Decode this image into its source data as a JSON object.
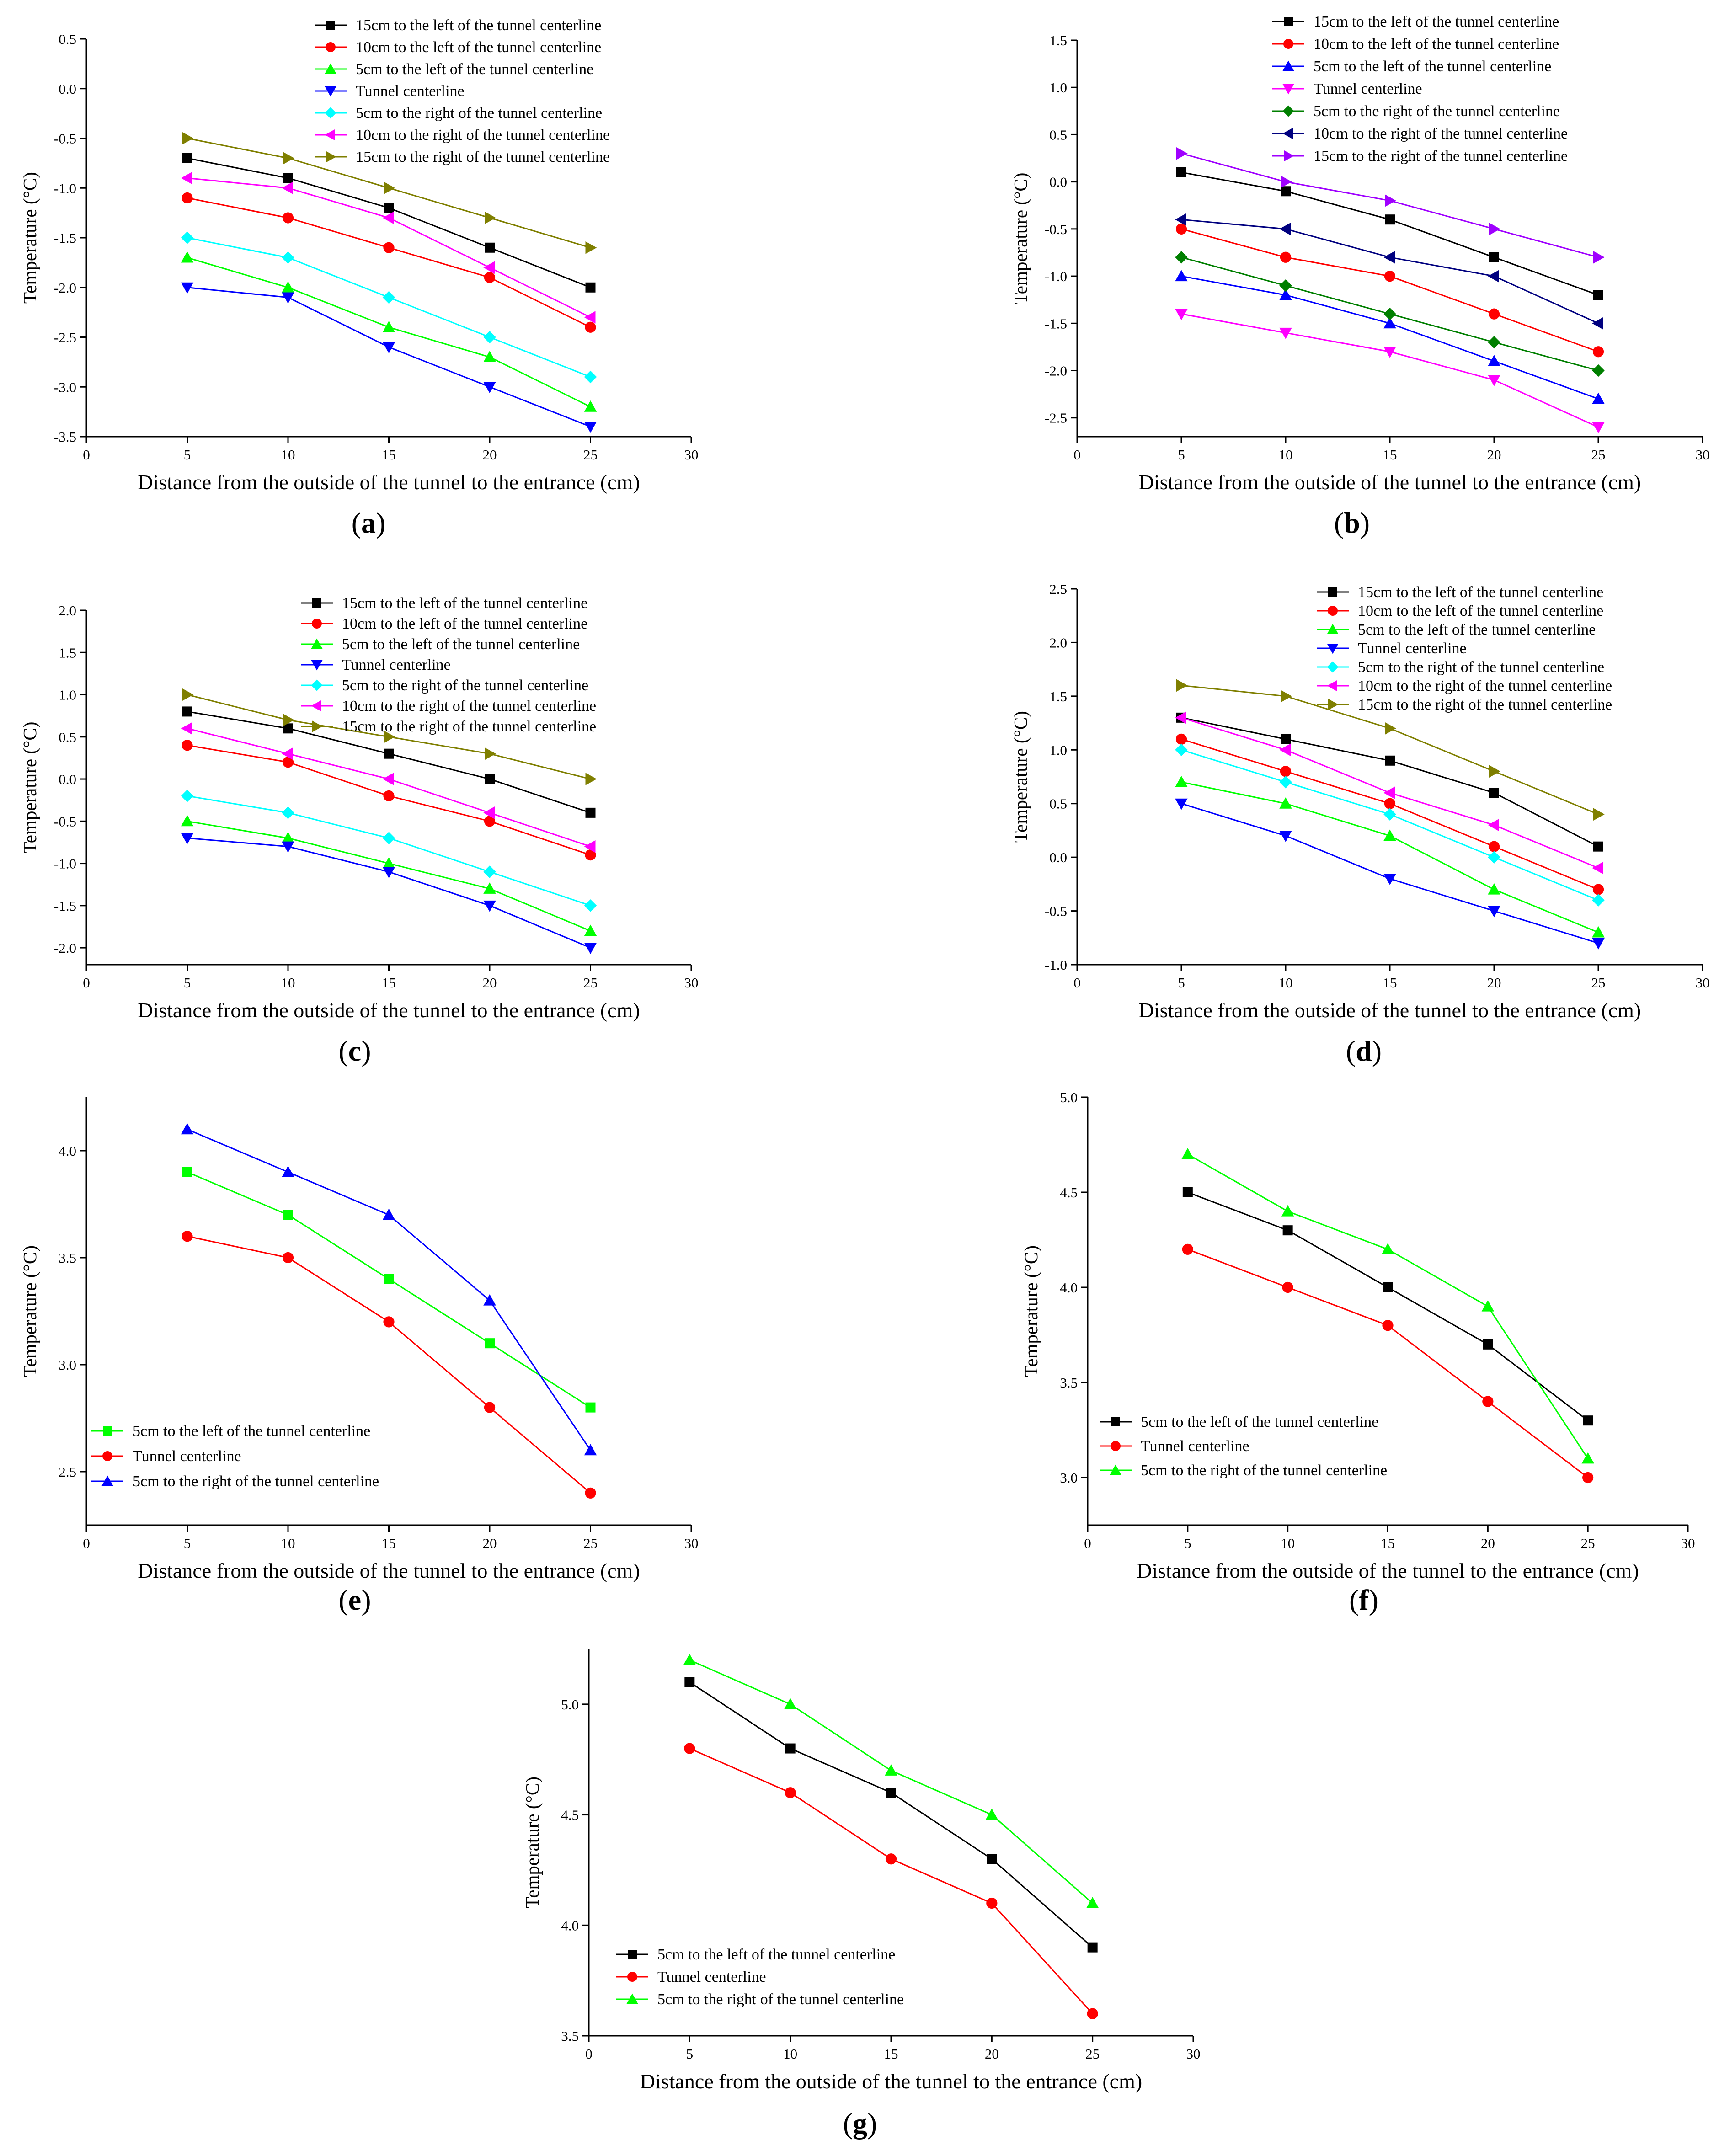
{
  "figure": {
    "panel_labels": [
      "(a)",
      "(b)",
      "(c)",
      "(d)",
      "(e)",
      "(f)",
      "(g)"
    ],
    "panel_letters": [
      "a",
      "b",
      "c",
      "d",
      "e",
      "f",
      "g"
    ]
  },
  "colors": {
    "black": "#000000",
    "red": "#ff0000",
    "green": "#00ff00",
    "darkgreen": "#007f00",
    "blue": "#0000ff",
    "navy": "#00007f",
    "cyan": "#00ffff",
    "magenta": "#ff00ff",
    "olive": "#7f7f00",
    "purple": "#9f00ff"
  },
  "chart_data": [
    {
      "type": "line",
      "panel": "(a)",
      "xlabel": "Distance from the outside of the tunnel to the entrance (cm)",
      "ylabel": "Temperature (°C)",
      "xlim": [
        0,
        30
      ],
      "ylim": [
        -3.5,
        0.5
      ],
      "xticks": [
        0,
        5,
        10,
        15,
        20,
        25,
        30
      ],
      "yticks": [
        -3.5,
        -3.0,
        -2.5,
        -2.0,
        -1.5,
        -1.0,
        -0.5,
        0.0,
        0.5
      ],
      "ytick_labels": [
        "-3.5",
        "-3.0",
        "-2.5",
        "-2.0",
        "-1.5",
        "-1.0",
        "-0.5",
        "0.0",
        "0.5"
      ],
      "grid": false,
      "legend": "top-right",
      "x": [
        5,
        10,
        15,
        20,
        25
      ],
      "series": [
        {
          "name": "15cm to the left of the tunnel centerline",
          "values": [
            -0.7,
            -0.9,
            -1.2,
            -1.6,
            -2.0
          ],
          "color": "#000000",
          "marker": "square"
        },
        {
          "name": "10cm to the left of the tunnel centerline",
          "values": [
            -1.1,
            -1.3,
            -1.6,
            -1.9,
            -2.4
          ],
          "color": "#ff0000",
          "marker": "circle"
        },
        {
          "name": "5cm to the left of the tunnel centerline",
          "values": [
            -1.7,
            -2.0,
            -2.4,
            -2.7,
            -3.2
          ],
          "color": "#00ff00",
          "marker": "triangle-up"
        },
        {
          "name": "Tunnel centerline",
          "values": [
            -2.0,
            -2.1,
            -2.6,
            -3.0,
            -3.4
          ],
          "color": "#0000ff",
          "marker": "triangle-down"
        },
        {
          "name": "5cm to the right of the tunnel centerline",
          "values": [
            -1.5,
            -1.7,
            -2.1,
            -2.5,
            -2.9
          ],
          "color": "#00ffff",
          "marker": "diamond"
        },
        {
          "name": "10cm to the right of the tunnel centerline",
          "values": [
            -0.9,
            -1.0,
            -1.3,
            -1.8,
            -2.3
          ],
          "color": "#ff00ff",
          "marker": "triangle-left"
        },
        {
          "name": "15cm to the right of the tunnel centerline",
          "values": [
            -0.5,
            -0.7,
            -1.0,
            -1.3,
            -1.6
          ],
          "color": "#7f7f00",
          "marker": "triangle-right"
        }
      ]
    },
    {
      "type": "line",
      "panel": "(b)",
      "xlabel": "Distance from the outside of the tunnel to the entrance (cm)",
      "ylabel": "Temperature (°C)",
      "xlim": [
        0,
        30
      ],
      "ylim": [
        -2.7,
        1.5
      ],
      "xticks": [
        0,
        5,
        10,
        15,
        20,
        25,
        30
      ],
      "yticks": [
        -2.5,
        -2.0,
        -1.5,
        -1.0,
        -0.5,
        0.0,
        0.5,
        1.0,
        1.5
      ],
      "ytick_labels": [
        "-2.5",
        "-2.0",
        "-1.5",
        "-1.0",
        "-0.5",
        "0.0",
        "0.5",
        "1.0",
        "1.5"
      ],
      "grid": false,
      "legend": "top-right",
      "x": [
        5,
        10,
        15,
        20,
        25
      ],
      "series": [
        {
          "name": "15cm to the left of the tunnel centerline",
          "values": [
            0.1,
            -0.1,
            -0.4,
            -0.8,
            -1.2
          ],
          "color": "#000000",
          "marker": "square"
        },
        {
          "name": "10cm to the left of the tunnel centerline",
          "values": [
            -0.5,
            -0.8,
            -1.0,
            -1.4,
            -1.8
          ],
          "color": "#ff0000",
          "marker": "circle"
        },
        {
          "name": "5cm to the left of the tunnel centerline",
          "values": [
            -1.0,
            -1.2,
            -1.5,
            -1.9,
            -2.3
          ],
          "color": "#0000ff",
          "marker": "triangle-up"
        },
        {
          "name": "Tunnel centerline",
          "values": [
            -1.4,
            -1.6,
            -1.8,
            -2.1,
            -2.6
          ],
          "color": "#ff00ff",
          "marker": "triangle-down"
        },
        {
          "name": "5cm to the right of the tunnel centerline",
          "values": [
            -0.8,
            -1.1,
            -1.4,
            -1.7,
            -2.0
          ],
          "color": "#007f00",
          "marker": "diamond"
        },
        {
          "name": "10cm to the right of the tunnel centerline",
          "values": [
            -0.4,
            -0.5,
            -0.8,
            -1.0,
            -1.5
          ],
          "color": "#00007f",
          "marker": "triangle-left"
        },
        {
          "name": "15cm to the right of the tunnel centerline",
          "values": [
            0.3,
            0.0,
            -0.2,
            -0.5,
            -0.8
          ],
          "color": "#9f00ff",
          "marker": "triangle-right"
        }
      ]
    },
    {
      "type": "line",
      "panel": "(c)",
      "xlabel": "Distance from the outside of the tunnel to the entrance (cm)",
      "ylabel": "Temperature (°C)",
      "xlim": [
        0,
        30
      ],
      "ylim": [
        -2.2,
        2.0
      ],
      "xticks": [
        0,
        5,
        10,
        15,
        20,
        25,
        30
      ],
      "yticks": [
        -2.0,
        -1.5,
        -1.0,
        -0.5,
        0.0,
        0.5,
        1.0,
        1.5,
        2.0
      ],
      "ytick_labels": [
        "-2.0",
        "-1.5",
        "-1.0",
        "-0.5",
        "0.0",
        "0.5",
        "1.0",
        "1.5",
        "2.0"
      ],
      "grid": false,
      "legend": "top-right",
      "x": [
        5,
        10,
        15,
        20,
        25
      ],
      "series": [
        {
          "name": "15cm to the left of the tunnel centerline",
          "values": [
            0.8,
            0.6,
            0.3,
            0.0,
            -0.4
          ],
          "color": "#000000",
          "marker": "square"
        },
        {
          "name": "10cm to the left of the tunnel centerline",
          "values": [
            0.4,
            0.2,
            -0.2,
            -0.5,
            -0.9
          ],
          "color": "#ff0000",
          "marker": "circle"
        },
        {
          "name": "5cm to the left of the tunnel centerline",
          "values": [
            -0.5,
            -0.7,
            -1.0,
            -1.3,
            -1.8
          ],
          "color": "#00ff00",
          "marker": "triangle-up"
        },
        {
          "name": "Tunnel centerline",
          "values": [
            -0.7,
            -0.8,
            -1.1,
            -1.5,
            -2.0
          ],
          "color": "#0000ff",
          "marker": "triangle-down"
        },
        {
          "name": "5cm to the right of the tunnel centerline",
          "values": [
            -0.2,
            -0.4,
            -0.7,
            -1.1,
            -1.5
          ],
          "color": "#00ffff",
          "marker": "diamond"
        },
        {
          "name": "10cm to the right of the tunnel centerline",
          "values": [
            0.6,
            0.3,
            0.0,
            -0.4,
            -0.8
          ],
          "color": "#ff00ff",
          "marker": "triangle-left"
        },
        {
          "name": "15cm to the right of the tunnel centerline",
          "values": [
            1.0,
            0.7,
            0.5,
            0.3,
            0.0
          ],
          "color": "#7f7f00",
          "marker": "triangle-right"
        }
      ]
    },
    {
      "type": "line",
      "panel": "(d)",
      "xlabel": "Distance from the outside of the tunnel to the entrance (cm)",
      "ylabel": "Temperature (°C)",
      "xlim": [
        0,
        30
      ],
      "ylim": [
        -1.0,
        2.5
      ],
      "xticks": [
        0,
        5,
        10,
        15,
        20,
        25,
        30
      ],
      "yticks": [
        -1.0,
        -0.5,
        0.0,
        0.5,
        1.0,
        1.5,
        2.0,
        2.5
      ],
      "ytick_labels": [
        "-1.0",
        "-0.5",
        "0.0",
        "0.5",
        "1.0",
        "1.5",
        "2.0",
        "2.5"
      ],
      "grid": false,
      "legend": "top-right",
      "x": [
        5,
        10,
        15,
        20,
        25
      ],
      "series": [
        {
          "name": "15cm to the left of the tunnel centerline",
          "values": [
            1.3,
            1.1,
            0.9,
            0.6,
            0.1
          ],
          "color": "#000000",
          "marker": "square"
        },
        {
          "name": "10cm to the left of the tunnel centerline",
          "values": [
            1.1,
            0.8,
            0.5,
            0.1,
            -0.3
          ],
          "color": "#ff0000",
          "marker": "circle"
        },
        {
          "name": "5cm to the left of the tunnel centerline",
          "values": [
            0.7,
            0.5,
            0.2,
            -0.3,
            -0.7
          ],
          "color": "#00ff00",
          "marker": "triangle-up"
        },
        {
          "name": "Tunnel centerline",
          "values": [
            0.5,
            0.2,
            -0.2,
            -0.5,
            -0.8
          ],
          "color": "#0000ff",
          "marker": "triangle-down"
        },
        {
          "name": "5cm to the right of the tunnel centerline",
          "values": [
            1.0,
            0.7,
            0.4,
            0.0,
            -0.4
          ],
          "color": "#00ffff",
          "marker": "diamond"
        },
        {
          "name": "10cm to the right of the tunnel centerline",
          "values": [
            1.3,
            1.0,
            0.6,
            0.3,
            -0.1
          ],
          "color": "#ff00ff",
          "marker": "triangle-left"
        },
        {
          "name": "15cm to the right of the tunnel centerline",
          "values": [
            1.6,
            1.5,
            1.2,
            0.8,
            0.4
          ],
          "color": "#7f7f00",
          "marker": "triangle-right"
        }
      ]
    },
    {
      "type": "line",
      "panel": "(e)",
      "xlabel": "Distance from the outside of the tunnel to the entrance (cm)",
      "ylabel": "Temperature (°C)",
      "xlim": [
        0,
        30
      ],
      "ylim": [
        2.25,
        4.25
      ],
      "xticks": [
        0,
        5,
        10,
        15,
        20,
        25,
        30
      ],
      "yticks": [
        2.5,
        3.0,
        3.5,
        4.0
      ],
      "ytick_labels": [
        "2.5",
        "3.0",
        "3.5",
        "4.0"
      ],
      "grid": false,
      "legend": "bottom-left",
      "x": [
        5,
        10,
        15,
        20,
        25
      ],
      "series": [
        {
          "name": "5cm to the left of the tunnel centerline",
          "values": [
            3.9,
            3.7,
            3.4,
            3.1,
            2.8
          ],
          "color": "#00ff00",
          "marker": "square"
        },
        {
          "name": "Tunnel centerline",
          "values": [
            3.6,
            3.5,
            3.2,
            2.8,
            2.4
          ],
          "color": "#ff0000",
          "marker": "circle"
        },
        {
          "name": "5cm to the right of the tunnel centerline",
          "values": [
            4.1,
            3.9,
            3.7,
            3.3,
            2.6
          ],
          "color": "#0000ff",
          "marker": "triangle-up"
        }
      ]
    },
    {
      "type": "line",
      "panel": "(f)",
      "xlabel": "Distance from the outside of the tunnel to the entrance (cm)",
      "ylabel": "Temperature (°C)",
      "xlim": [
        0,
        30
      ],
      "ylim": [
        2.75,
        5.0
      ],
      "xticks": [
        0,
        5,
        10,
        15,
        20,
        25,
        30
      ],
      "yticks": [
        3.0,
        3.5,
        4.0,
        4.5,
        5.0
      ],
      "ytick_labels": [
        "3.0",
        "3.5",
        "4.0",
        "4.5",
        "5.0"
      ],
      "grid": false,
      "legend": "bottom-left",
      "x": [
        5,
        10,
        15,
        20,
        25
      ],
      "series": [
        {
          "name": "5cm to the left of the tunnel centerline",
          "values": [
            4.5,
            4.3,
            4.0,
            3.7,
            3.3
          ],
          "color": "#000000",
          "marker": "square"
        },
        {
          "name": "Tunnel centerline",
          "values": [
            4.2,
            4.0,
            3.8,
            3.4,
            3.0
          ],
          "color": "#ff0000",
          "marker": "circle"
        },
        {
          "name": "5cm to the right of the tunnel centerline",
          "values": [
            4.7,
            4.4,
            4.2,
            3.9,
            3.1
          ],
          "color": "#00ff00",
          "marker": "triangle-up"
        }
      ]
    },
    {
      "type": "line",
      "panel": "(g)",
      "xlabel": "Distance from the outside of the tunnel to the entrance (cm)",
      "ylabel": "Temperature (°C)",
      "xlim": [
        0,
        30
      ],
      "ylim": [
        3.5,
        5.25
      ],
      "xticks": [
        0,
        5,
        10,
        15,
        20,
        25,
        30
      ],
      "yticks": [
        3.5,
        4.0,
        4.5,
        5.0
      ],
      "ytick_labels": [
        "3.5",
        "4.0",
        "4.5",
        "5.0"
      ],
      "grid": false,
      "legend": "bottom-left",
      "x": [
        5,
        10,
        15,
        20,
        25
      ],
      "series": [
        {
          "name": "5cm to the left of the tunnel centerline",
          "values": [
            5.1,
            4.8,
            4.6,
            4.3,
            3.9
          ],
          "color": "#000000",
          "marker": "square"
        },
        {
          "name": "Tunnel centerline",
          "values": [
            4.8,
            4.6,
            4.3,
            4.1,
            3.6
          ],
          "color": "#ff0000",
          "marker": "circle"
        },
        {
          "name": "5cm to the right of the tunnel centerline",
          "values": [
            5.2,
            5.0,
            4.7,
            4.5,
            4.1
          ],
          "color": "#00ff00",
          "marker": "triangle-up"
        }
      ]
    }
  ]
}
